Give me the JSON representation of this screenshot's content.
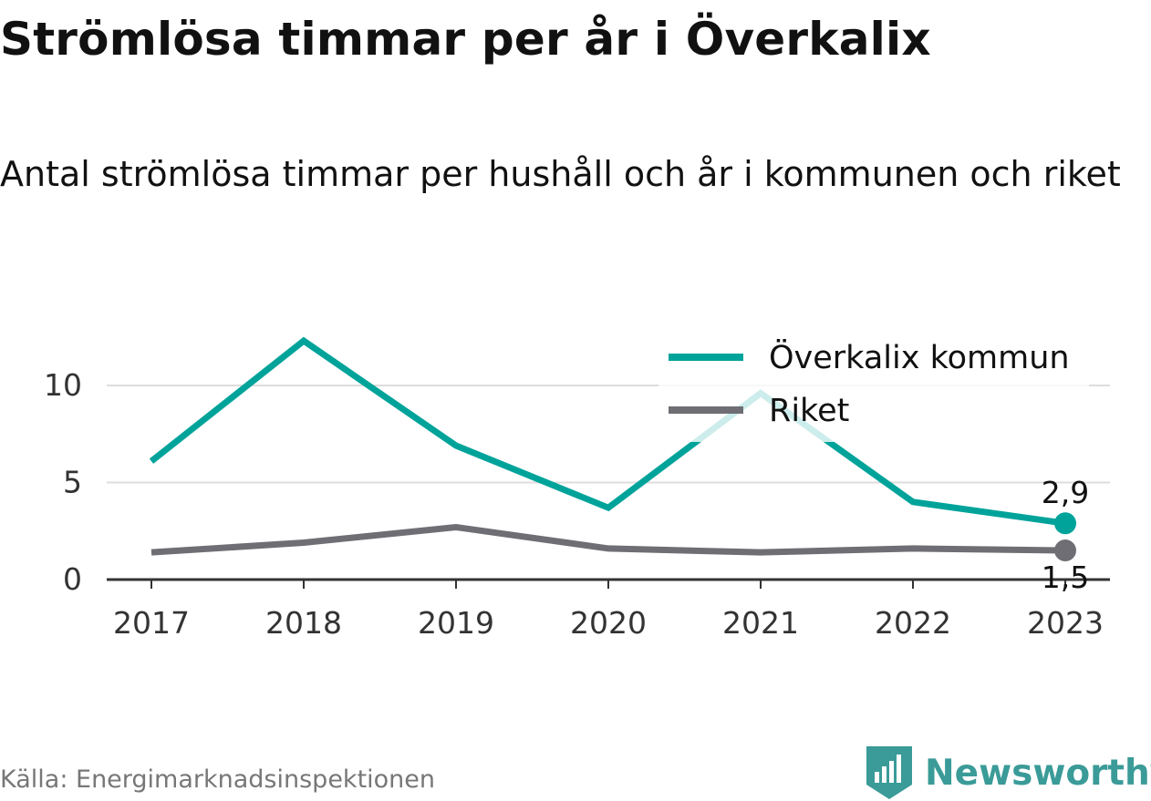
{
  "title": "Strömlösa timmar per år i Överkalix",
  "subtitle": "Antal strömlösa timmar per hushåll och år i kommunen och riket",
  "source": "Källa: Energimarknadsinspektionen",
  "brand": {
    "name": "Newsworthy",
    "icon": "newsworthy-logo-icon"
  },
  "colors": {
    "teal": "#00a39a",
    "gray": "#6e6e74",
    "grid": "#dddddd",
    "axis": "#333333",
    "brand": "#3a9b98"
  },
  "chart_data": {
    "type": "line",
    "x": [
      "2017",
      "2018",
      "2019",
      "2020",
      "2021",
      "2022",
      "2023"
    ],
    "series": [
      {
        "name": "Överkalix kommun",
        "color": "#00a39a",
        "values": [
          6.1,
          12.3,
          6.9,
          3.7,
          9.6,
          4.0,
          2.9
        ],
        "end_label": "2,9"
      },
      {
        "name": "Riket",
        "color": "#6e6e74",
        "values": [
          1.4,
          1.9,
          2.7,
          1.6,
          1.4,
          1.6,
          1.5
        ],
        "end_label": "1,5"
      }
    ],
    "yticks": [
      0,
      5,
      10
    ],
    "ylim": [
      0,
      12.3
    ],
    "grid": true,
    "legend_position": "top-right",
    "xlabel": "",
    "ylabel": ""
  }
}
